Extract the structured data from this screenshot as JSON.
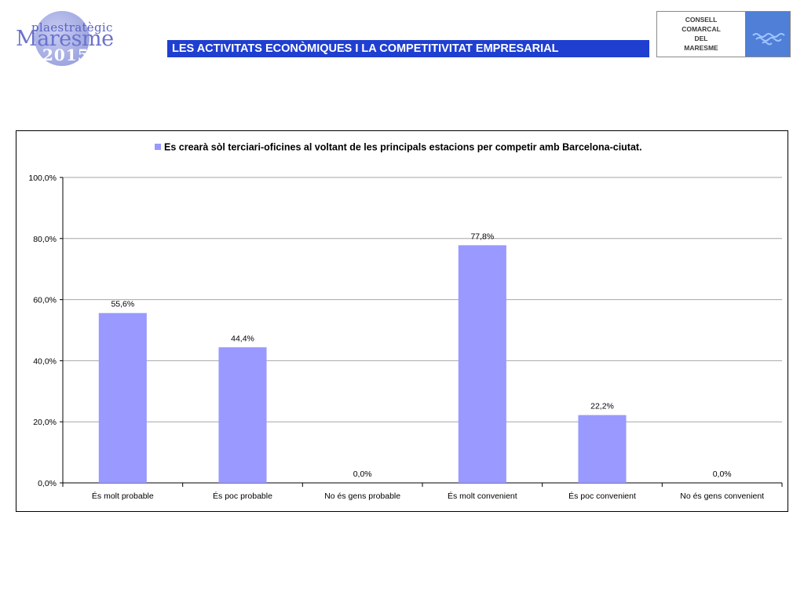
{
  "header": {
    "logo": {
      "pla": "plaestratègic",
      "maresme": "Maresme",
      "year": "2015"
    },
    "title": "LES ACTIVITATS ECONÒMIQUES I LA COMPETITIVITAT EMPRESARIAL",
    "consell": {
      "line1": "CONSELL",
      "line2": "COMARCAL",
      "line3": "DEL",
      "line4": "MARESME"
    }
  },
  "colors": {
    "bar": "#9999ff",
    "header_bg": "#1f3fd1",
    "grid": "#a6a6a6"
  },
  "chart_data": {
    "type": "bar",
    "categories": [
      "És molt probable",
      "És poc probable",
      "No és gens probable",
      "És molt convenient",
      "És poc convenient",
      "No és gens convenient"
    ],
    "series": [
      {
        "name": "Es crearà sòl terciari-oficines al voltant de les principals estacions per competir amb Barcelona-ciutat.",
        "values": [
          55.6,
          44.4,
          0.0,
          77.8,
          22.2,
          0.0
        ]
      }
    ],
    "data_labels": [
      "55,6%",
      "44,4%",
      "0,0%",
      "77,8%",
      "22,2%",
      "0,0%"
    ],
    "yticks": [
      "0,0%",
      "20,0%",
      "40,0%",
      "60,0%",
      "80,0%",
      "100,0%"
    ],
    "ylim": [
      0,
      100
    ],
    "grid": true,
    "legend_position": "top"
  }
}
